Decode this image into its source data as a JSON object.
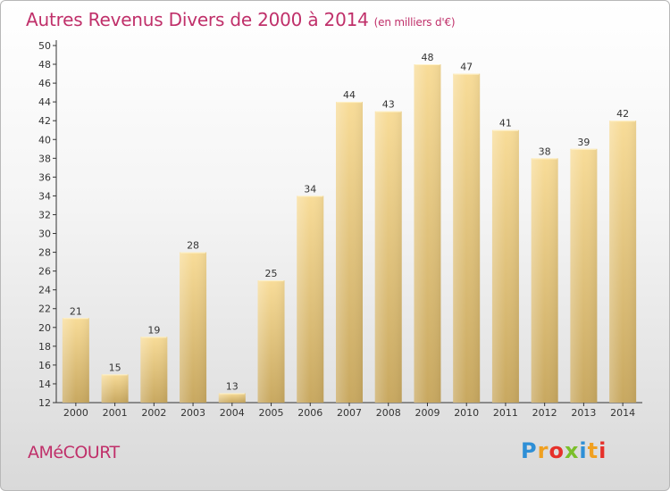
{
  "header": {
    "title": "Autres Revenus Divers de 2000 à 2014",
    "subtitle": "(en milliers d'€)"
  },
  "footer": {
    "commune": "AMéCOURT",
    "logo_letters": [
      "P",
      "r",
      "o",
      "x",
      "i",
      "t",
      "i"
    ],
    "logo_colors": [
      "#2e8fd6",
      "#f0a020",
      "#e6302a",
      "#7bbf2a",
      "#2e8fd6",
      "#f0a020",
      "#e6302a"
    ]
  },
  "chart_data": {
    "type": "bar",
    "title": "Autres Revenus Divers de 2000 à 2014",
    "subtitle": "(en milliers d'€)",
    "categories": [
      "2000",
      "2001",
      "2002",
      "2003",
      "2004",
      "2005",
      "2006",
      "2007",
      "2008",
      "2009",
      "2010",
      "2011",
      "2012",
      "2013",
      "2014"
    ],
    "values": [
      21,
      15,
      19,
      28,
      13,
      25,
      34,
      44,
      43,
      48,
      47,
      41,
      38,
      39,
      42
    ],
    "ylim": [
      12,
      50
    ],
    "yticks": [
      12,
      14,
      16,
      18,
      20,
      22,
      24,
      26,
      28,
      30,
      32,
      34,
      36,
      38,
      40,
      42,
      44,
      46,
      48,
      50
    ],
    "grid": false,
    "colors": {
      "bar_light": "#f8dc98",
      "bar_dark": "#c8a860",
      "axis": "#333333",
      "accent": "#c0306a"
    }
  }
}
